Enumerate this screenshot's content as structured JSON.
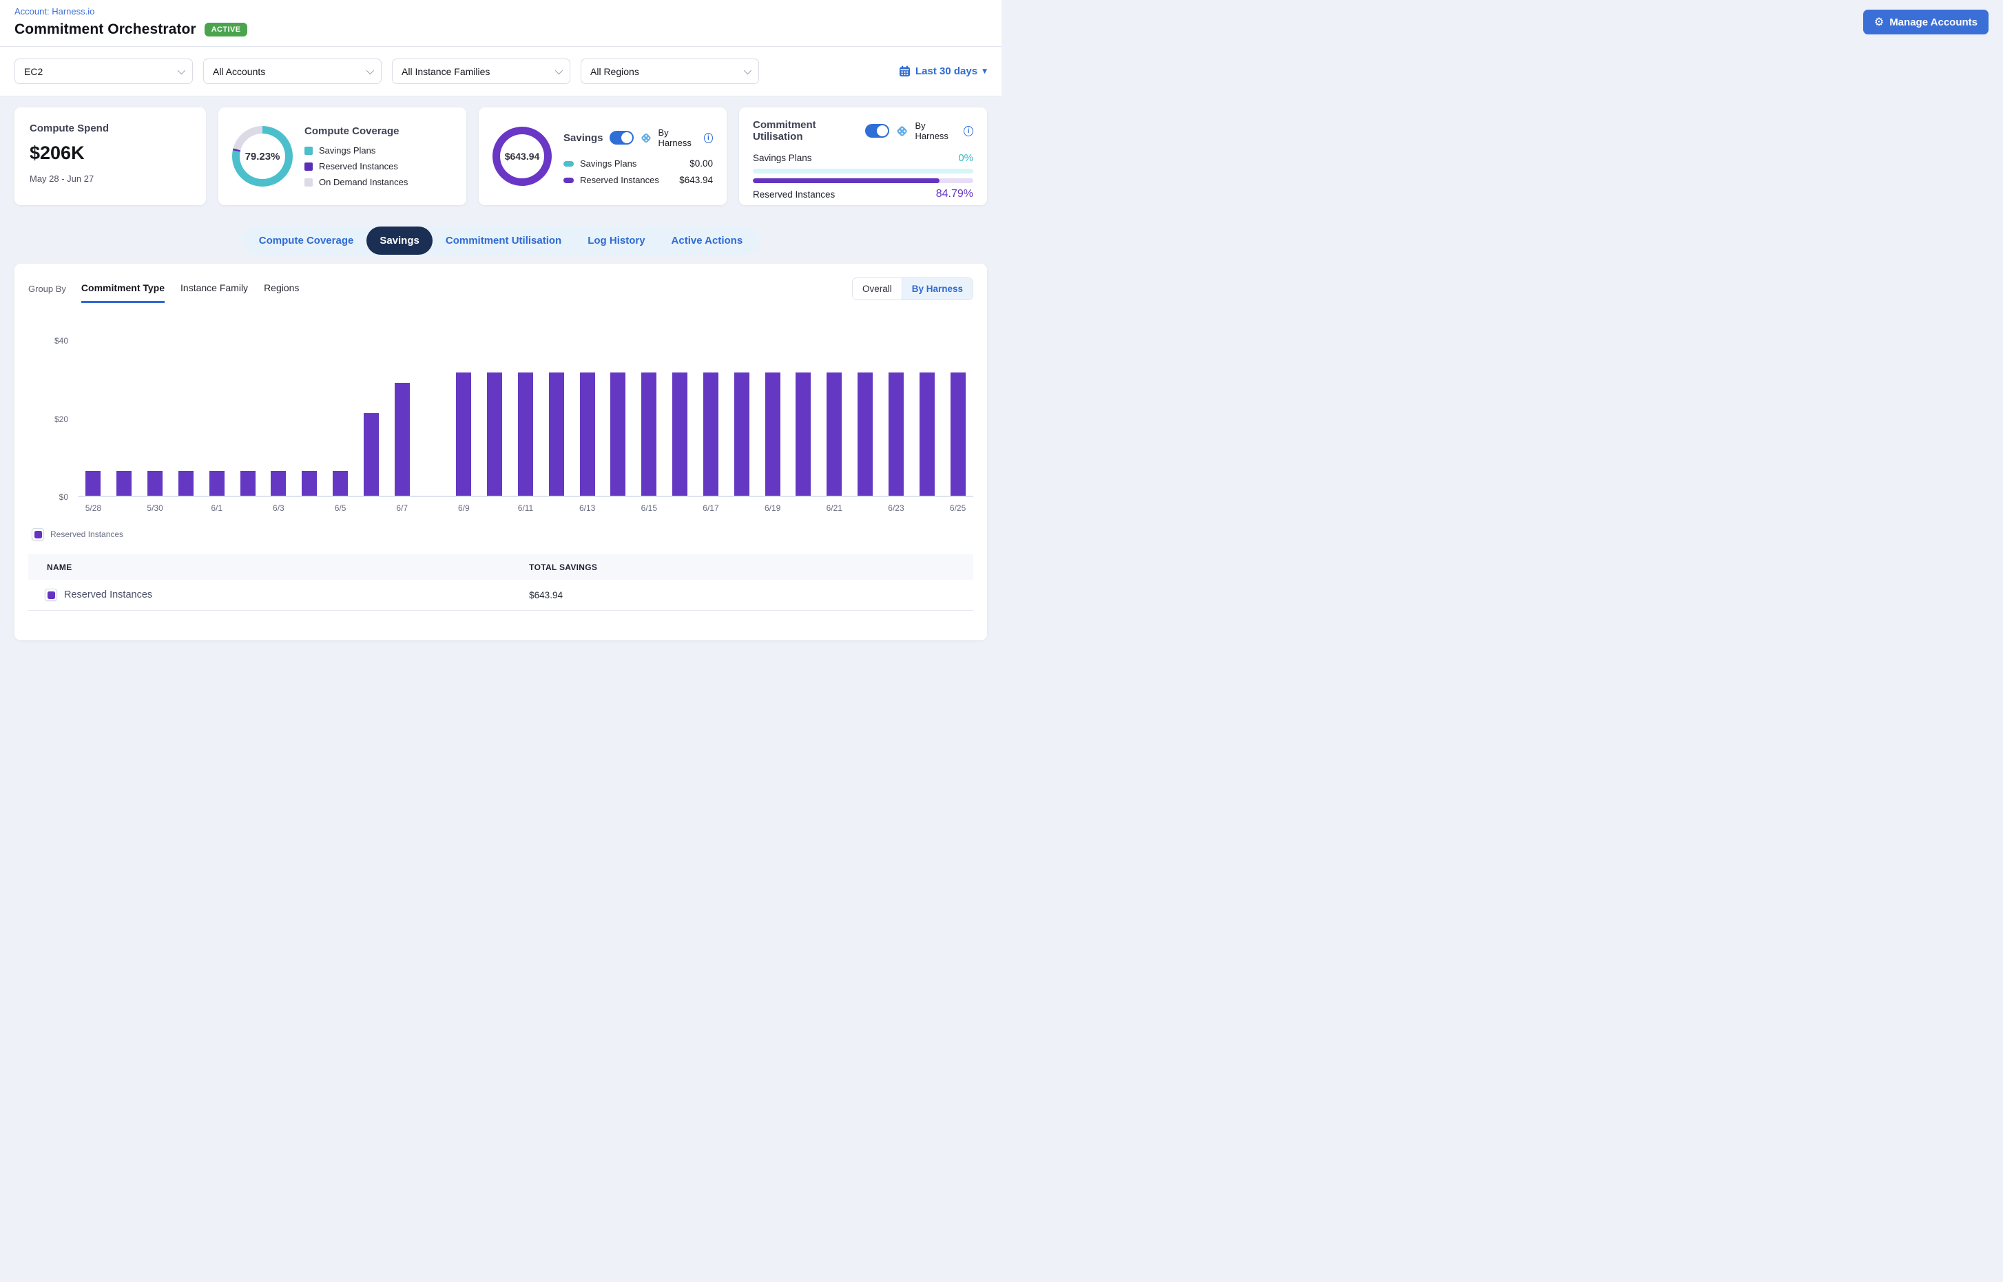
{
  "header": {
    "account_link": "Account: Harness.io",
    "title": "Commitment Orchestrator",
    "status_badge": "ACTIVE",
    "manage_accounts_label": "Manage Accounts"
  },
  "filters": {
    "service": "EC2",
    "accounts": "All Accounts",
    "instance_families": "All Instance Families",
    "regions": "All Regions",
    "date_range": "Last 30 days"
  },
  "cards": {
    "compute_spend": {
      "title": "Compute Spend",
      "value": "$206K",
      "period": "May 28 - Jun 27"
    },
    "compute_coverage": {
      "title": "Compute Coverage",
      "percentage": "79.23%",
      "segments": [
        {
          "label": "Savings Plans",
          "pct": 78.2,
          "color": "#4bbfcb"
        },
        {
          "label": "Reserved Instances",
          "pct": 1.03,
          "color": "#5a2eb8"
        },
        {
          "label": "On Demand Instances",
          "pct": 20.77,
          "color": "#dcdae6"
        }
      ]
    },
    "savings": {
      "title": "Savings",
      "toggle_label": "By Harness",
      "total": "$643.94",
      "donut_color": "#6a36c6",
      "rows": [
        {
          "label": "Savings Plans",
          "value": "$0.00",
          "color": "#4bbfcb"
        },
        {
          "label": "Reserved Instances",
          "value": "$643.94",
          "color": "#6434c1"
        }
      ]
    },
    "commitment_utilisation": {
      "title": "Commitment Utilisation",
      "toggle_label": "By Harness",
      "rows": [
        {
          "label": "Savings Plans",
          "value": "0%",
          "pct": 0,
          "fill": "#3bb8c4",
          "track": "#d8f5f7"
        },
        {
          "label": "Reserved Instances",
          "value": "84.79%",
          "pct": 84.79,
          "fill": "#6434c1",
          "track": "#e6def7"
        }
      ]
    }
  },
  "tabs": [
    {
      "label": "Compute Coverage",
      "active": false
    },
    {
      "label": "Savings",
      "active": true
    },
    {
      "label": "Commitment Utilisation",
      "active": false
    },
    {
      "label": "Log History",
      "active": false
    },
    {
      "label": "Active Actions",
      "active": false
    }
  ],
  "panel": {
    "group_by_label": "Group By",
    "group_tabs": [
      {
        "label": "Commitment Type",
        "active": true
      },
      {
        "label": "Instance Family",
        "active": false
      },
      {
        "label": "Regions",
        "active": false
      }
    ],
    "view_toggle": [
      {
        "label": "Overall",
        "active": false
      },
      {
        "label": "By Harness",
        "active": true
      }
    ],
    "legend": [
      {
        "label": "Reserved Instances",
        "color": "#6434c1"
      }
    ],
    "table": {
      "columns": [
        "NAME",
        "TOTAL SAVINGS"
      ],
      "rows": [
        {
          "name": "Reserved Instances",
          "total_savings": "$643.94",
          "color": "#6434c1"
        }
      ]
    }
  },
  "chart_data": {
    "type": "bar",
    "title": "Savings by Commitment Type (By Harness)",
    "x": [
      "5/28",
      "5/29",
      "5/30",
      "5/31",
      "6/1",
      "6/2",
      "6/3",
      "6/4",
      "6/5",
      "6/6",
      "6/7",
      "6/8",
      "6/9",
      "6/10",
      "6/11",
      "6/12",
      "6/13",
      "6/14",
      "6/15",
      "6/16",
      "6/17",
      "6/18",
      "6/19",
      "6/20",
      "6/21",
      "6/22",
      "6/23",
      "6/24",
      "6/25"
    ],
    "series": [
      {
        "name": "Reserved Instances",
        "color": "#6438c2",
        "values": [
          6.3,
          6.3,
          6.3,
          6.3,
          6.3,
          6.3,
          6.3,
          6.3,
          6.3,
          21.2,
          28.9,
          0,
          31.5,
          31.5,
          31.5,
          31.5,
          31.5,
          31.5,
          31.5,
          31.5,
          31.5,
          31.5,
          31.5,
          31.5,
          31.5,
          31.5,
          31.5,
          31.5,
          31.5
        ]
      }
    ],
    "ylabel": "",
    "xlabel": "",
    "ylim": [
      0,
      40
    ],
    "y_ticks": [
      0,
      20,
      40
    ],
    "y_tick_prefix": "$",
    "x_tick_every": 2,
    "grid": false,
    "legend_position": "bottom"
  }
}
